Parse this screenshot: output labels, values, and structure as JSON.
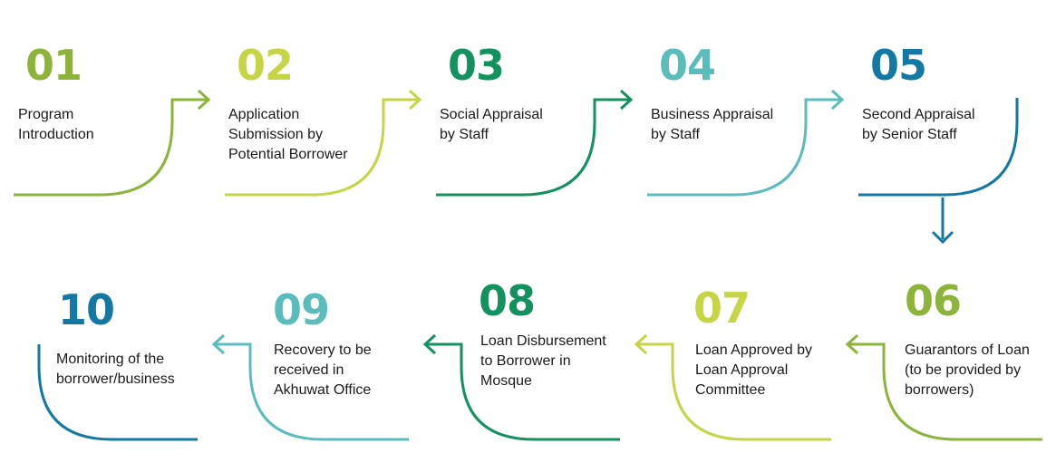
{
  "colors": {
    "c1": "#8db43a",
    "c2": "#c5d545",
    "c3": "#13915f",
    "c4": "#5bbcbc",
    "c5": "#1379a3"
  },
  "steps": [
    {
      "num": "01",
      "label": [
        "Program",
        "Introduction"
      ],
      "color": "#8db43a"
    },
    {
      "num": "02",
      "label": [
        "Application",
        "Submission by",
        "Potential Borrower"
      ],
      "color": "#c5d545"
    },
    {
      "num": "03",
      "label": [
        "Social Appraisal",
        "by Staff"
      ],
      "color": "#13915f"
    },
    {
      "num": "04",
      "label": [
        "Business Appraisal",
        "by Staff"
      ],
      "color": "#5bbcbc"
    },
    {
      "num": "05",
      "label": [
        "Second Appraisal",
        "by Senior Staff"
      ],
      "color": "#1379a3"
    },
    {
      "num": "06",
      "label": [
        "Guarantors of Loan",
        "(to be provided by",
        "borrowers)"
      ],
      "color": "#8db43a"
    },
    {
      "num": "07",
      "label": [
        "Loan Approved by",
        "Loan Approval",
        "Committee"
      ],
      "color": "#c5d545"
    },
    {
      "num": "08",
      "label": [
        "Loan Disbursement",
        "to Borrower in",
        "Mosque"
      ],
      "color": "#13915f"
    },
    {
      "num": "09",
      "label": [
        "Recovery to be",
        "received in",
        "Akhuwat Office"
      ],
      "color": "#5bbcbc"
    },
    {
      "num": "10",
      "label": [
        "Monitoring of the",
        "borrower/business"
      ],
      "color": "#1379a3"
    }
  ]
}
